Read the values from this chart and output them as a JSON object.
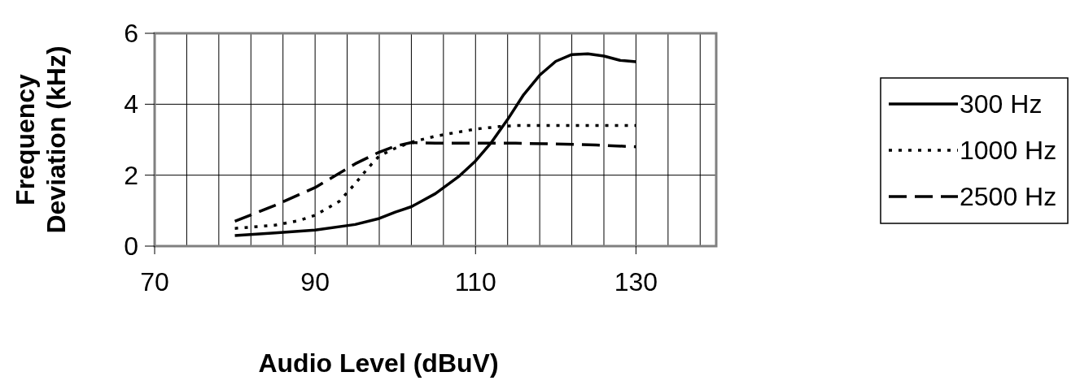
{
  "chart_data": {
    "type": "line",
    "xlabel": "Audio Level (dBuV)",
    "ylabel": "Frequency Deviation (kHz)",
    "xlim": [
      70,
      140
    ],
    "ylim": [
      0,
      6
    ],
    "xticks": [
      70,
      {
        "value": 74,
        "label": null
      },
      {
        "value": 78,
        "label": null
      },
      {
        "value": 82,
        "label": null
      },
      {
        "value": 86,
        "label": null
      },
      90,
      {
        "value": 94,
        "label": null
      },
      {
        "value": 98,
        "label": null
      },
      {
        "value": 102,
        "label": null
      },
      {
        "value": 106,
        "label": null
      },
      110,
      {
        "value": 114,
        "label": null
      },
      {
        "value": 118,
        "label": null
      },
      {
        "value": 122,
        "label": null
      },
      {
        "value": 126,
        "label": null
      },
      130,
      {
        "value": 134,
        "label": null
      },
      {
        "value": 138,
        "label": null
      }
    ],
    "yticks": [
      0,
      2,
      4,
      6
    ],
    "grid": true,
    "legend": "right",
    "series": [
      {
        "name": "300 Hz",
        "color": "#000000",
        "line_style": "solid",
        "x": [
          80,
          85,
          90,
          95,
          98,
          100,
          102,
          105,
          108,
          110,
          112,
          114,
          116,
          118,
          120,
          122,
          124,
          126,
          128,
          130
        ],
        "values": [
          0.3,
          0.37,
          0.45,
          0.61,
          0.78,
          0.96,
          1.11,
          1.48,
          1.98,
          2.4,
          2.93,
          3.57,
          4.27,
          4.82,
          5.21,
          5.4,
          5.42,
          5.36,
          5.24,
          5.2
        ]
      },
      {
        "name": "1000 Hz",
        "color": "#000000",
        "line_style": "dotted",
        "x": [
          80,
          85,
          88,
          90,
          93,
          95,
          96,
          97,
          98,
          100,
          102,
          105,
          108,
          110,
          113,
          115,
          120,
          125,
          130
        ],
        "values": [
          0.5,
          0.59,
          0.72,
          0.87,
          1.26,
          1.76,
          2.04,
          2.3,
          2.54,
          2.76,
          2.93,
          3.1,
          3.22,
          3.3,
          3.37,
          3.4,
          3.4,
          3.4,
          3.4
        ]
      },
      {
        "name": "2500 Hz",
        "color": "#000000",
        "line_style": "dashed",
        "x": [
          80,
          85,
          90,
          95,
          98,
          100,
          102,
          105,
          110,
          115,
          120,
          125,
          130
        ],
        "values": [
          0.7,
          1.15,
          1.65,
          2.32,
          2.65,
          2.82,
          2.92,
          2.9,
          2.9,
          2.9,
          2.88,
          2.85,
          2.8
        ]
      }
    ]
  }
}
